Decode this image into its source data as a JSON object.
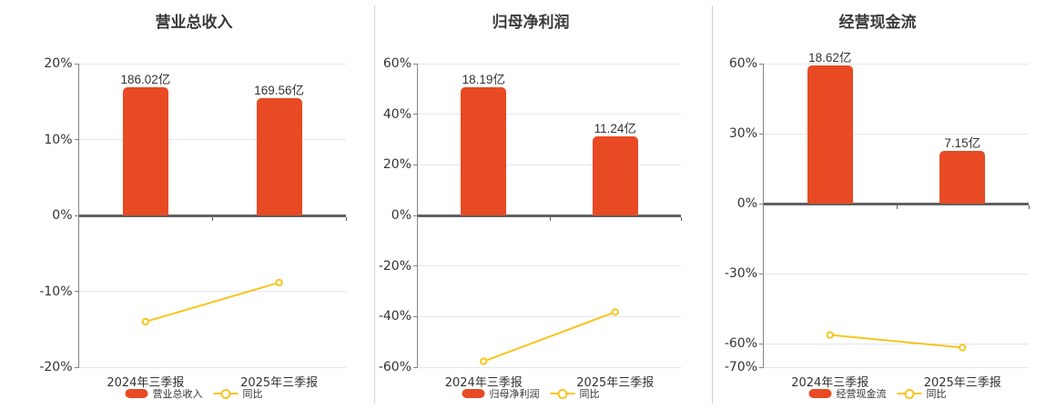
{
  "colors": {
    "bar": "#e84a23",
    "line": "#f7c51e",
    "marker_fill": "#ffffff",
    "title_text": "#3a3a3a",
    "axis_text": "#333333",
    "grid_line": "#e1e7f2",
    "zero_line": "#616161",
    "axis_line": "#848484",
    "divider": "#d2d2d2",
    "background": "#ffffff"
  },
  "chart_data": [
    {
      "type": "bar",
      "title": "营业总收入",
      "categories": [
        "2024年三季报",
        "2025年三季报"
      ],
      "series": [
        {
          "name": "营业总收入",
          "type": "bar",
          "unit": "亿",
          "values": [
            186.02,
            169.56
          ],
          "data_labels": [
            "186.02亿",
            "169.56亿"
          ]
        },
        {
          "name": "同比",
          "type": "line",
          "unit": "%",
          "values": [
            -14.0,
            -8.85
          ]
        }
      ],
      "y_axis": {
        "min": -20,
        "max": 20,
        "ticks": [
          20,
          10,
          0,
          -10,
          -20
        ],
        "tick_labels": [
          "20%",
          "10%",
          "0%",
          "-10%",
          "-20%"
        ]
      },
      "bar_scale_max": 220.3,
      "legend_position": "bottom",
      "grid": true
    },
    {
      "type": "bar",
      "title": "归母净利润",
      "categories": [
        "2024年三季报",
        "2025年三季报"
      ],
      "series": [
        {
          "name": "归母净利润",
          "type": "bar",
          "unit": "亿",
          "values": [
            18.19,
            11.24
          ],
          "data_labels": [
            "18.19亿",
            "11.24亿"
          ]
        },
        {
          "name": "同比",
          "type": "line",
          "unit": "%",
          "values": [
            -57.7,
            -38.2
          ]
        }
      ],
      "y_axis": {
        "min": -60,
        "max": 60,
        "ticks": [
          60,
          40,
          20,
          0,
          -20,
          -40,
          -60
        ],
        "tick_labels": [
          "60%",
          "40%",
          "20%",
          "0%",
          "-20%",
          "-40%",
          "-60%"
        ]
      },
      "bar_scale_max": 21.5,
      "legend_position": "bottom",
      "grid": true
    },
    {
      "type": "bar",
      "title": "经营现金流",
      "categories": [
        "2024年三季报",
        "2025年三季报"
      ],
      "series": [
        {
          "name": "经营现金流",
          "type": "bar",
          "unit": "亿",
          "values": [
            18.62,
            7.15
          ],
          "data_labels": [
            "18.62亿",
            "7.15亿"
          ]
        },
        {
          "name": "同比",
          "type": "line",
          "unit": "%",
          "values": [
            -56.2,
            -61.6
          ]
        }
      ],
      "y_axis": {
        "min": -70,
        "max": 60,
        "ticks": [
          60,
          30,
          0,
          -30,
          -60,
          -70
        ],
        "tick_labels": [
          "60%",
          "30%",
          "0%",
          "-30%",
          "-60%",
          "-70%"
        ]
      },
      "bar_scale_max": 18.9,
      "legend_position": "bottom",
      "grid": true
    }
  ]
}
